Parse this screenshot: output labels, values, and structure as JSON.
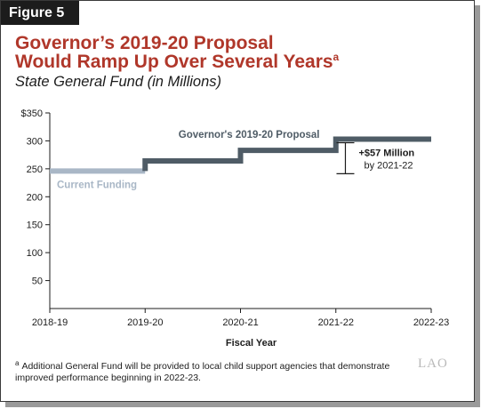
{
  "figure_label": "Figure 5",
  "title_line1": "Governor’s 2019-20 Proposal",
  "title_line2": "Would Ramp Up Over Several Years",
  "title_footnote_mark": "a",
  "subtitle": "State General Fund (in Millions)",
  "footnote_mark": "a",
  "footnote_text": "Additional General Fund will be provided to local child support agencies that demonstrate improved performance beginning in 2022-23.",
  "logo_text": "LAO",
  "colors": {
    "title": "#b0372a",
    "proposal": "#4f5c66",
    "current": "#a9b7c6",
    "axis": "#1c1c1c"
  },
  "chart_data": {
    "type": "line",
    "x_categories": [
      "2018-19",
      "2019-20",
      "2020-21",
      "2021-22",
      "2022-23"
    ],
    "xlabel": "Fiscal Year",
    "ylim": [
      0,
      350
    ],
    "y_ticks": [
      50,
      100,
      150,
      200,
      250,
      300,
      350
    ],
    "y_tick_labels": [
      "50",
      "100",
      "150",
      "200",
      "250",
      "300",
      "$350"
    ],
    "series": [
      {
        "name": "Current Funding",
        "style": "flat",
        "segments": [
          [
            0,
            1,
            246
          ]
        ]
      },
      {
        "name": "Governor's 2019-20 Proposal",
        "style": "step",
        "segments": [
          [
            1,
            2,
            264
          ],
          [
            2,
            3,
            283
          ],
          [
            3,
            4,
            303
          ]
        ]
      }
    ],
    "annotation": {
      "line1": "+$57 Million",
      "line2": "by 2021-22",
      "from": 246,
      "to": 303,
      "x_index": 3.1
    }
  }
}
